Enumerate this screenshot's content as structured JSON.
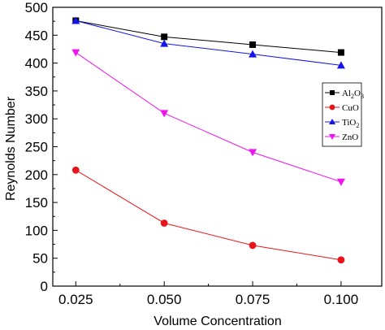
{
  "chart_data": {
    "type": "line",
    "x": [
      0.025,
      0.05,
      0.075,
      0.1
    ],
    "x_tick_labels": [
      "0.025",
      "0.050",
      "0.075",
      "0.100"
    ],
    "xlabel": "Volume Concentration",
    "ylabel": "Reynolds Number",
    "xlim": [
      0.0185,
      0.1115
    ],
    "ylim": [
      0,
      500
    ],
    "y_ticks": [
      0,
      50,
      100,
      150,
      200,
      250,
      300,
      350,
      400,
      450,
      500
    ],
    "grid": false,
    "legend_position": "right",
    "series": [
      {
        "name": "Al2O3",
        "sub": "2",
        "sub2": "3",
        "base": "Al",
        "mid": "O",
        "marker": "square",
        "color": "#000000",
        "line_color": "#000000",
        "values": [
          476,
          447,
          433,
          419
        ]
      },
      {
        "name": "CuO",
        "marker": "circle",
        "color": "#e8141a",
        "line_color": "#e8141a",
        "values": [
          208,
          113,
          73,
          47
        ]
      },
      {
        "name": "TiO2",
        "base": "TiO",
        "sub": "2",
        "marker": "triangle-up",
        "color": "#1414e8",
        "line_color": "#1414e8",
        "values": [
          476,
          435,
          416,
          396
        ]
      },
      {
        "name": "ZnO",
        "marker": "triangle-down",
        "color": "#f014f0",
        "line_color": "#f014f0",
        "values": [
          419,
          310,
          240,
          187
        ]
      }
    ]
  }
}
